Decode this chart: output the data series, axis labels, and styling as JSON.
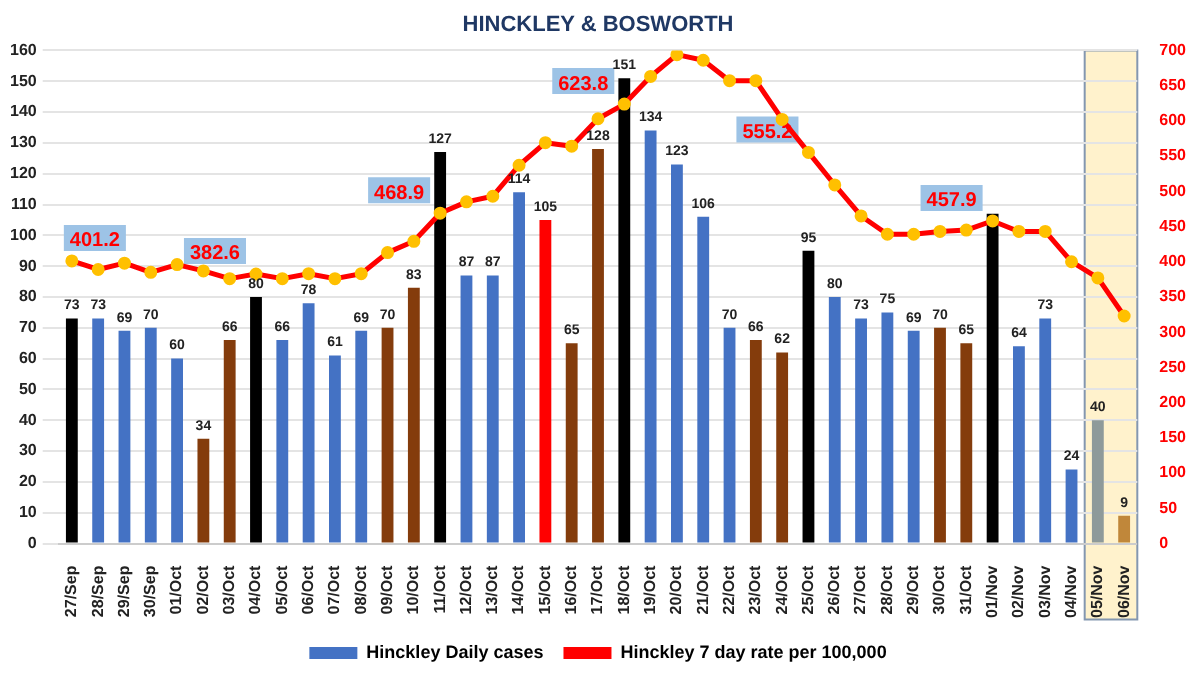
{
  "chart_data": {
    "type": "bar",
    "title": "HINCKLEY & BOSWORTH",
    "categories": [
      "27/Sep",
      "28/Sep",
      "29/Sep",
      "30/Sep",
      "01/Oct",
      "02/Oct",
      "03/Oct",
      "04/Oct",
      "05/Oct",
      "06/Oct",
      "07/Oct",
      "08/Oct",
      "09/Oct",
      "10/Oct",
      "11/Oct",
      "12/Oct",
      "13/Oct",
      "14/Oct",
      "15/Oct",
      "16/Oct",
      "17/Oct",
      "18/Oct",
      "19/Oct",
      "20/Oct",
      "21/Oct",
      "22/Oct",
      "23/Oct",
      "24/Oct",
      "25/Oct",
      "26/Oct",
      "27/Oct",
      "28/Oct",
      "29/Oct",
      "30/Oct",
      "31/Oct",
      "01/Nov",
      "02/Nov",
      "03/Nov",
      "04/Nov",
      "05/Nov",
      "06/Nov"
    ],
    "series": [
      {
        "name": "Hinckley Daily cases",
        "color": "#4472c4",
        "values": [
          73,
          73,
          69,
          70,
          60,
          34,
          66,
          80,
          66,
          78,
          61,
          69,
          70,
          83,
          127,
          87,
          87,
          114,
          105,
          65,
          128,
          151,
          134,
          123,
          106,
          70,
          66,
          62,
          95,
          80,
          73,
          75,
          69,
          70,
          65,
          107,
          64,
          73,
          24,
          40,
          9
        ],
        "value_labels": [
          "73",
          "73",
          "69",
          "70",
          "60",
          "34",
          "66",
          "80",
          "66",
          "78",
          "61",
          "69",
          "70",
          "83",
          "127",
          "87",
          "87",
          "114",
          "105",
          "65",
          "128",
          "151",
          "134",
          "123",
          "106",
          "70",
          "66",
          "62",
          "95",
          "80",
          "73",
          "75",
          "69",
          "70",
          "65",
          null,
          "64",
          "73",
          "24",
          "40",
          "9"
        ],
        "colors": [
          "#000000",
          "#4472c4",
          "#4472c4",
          "#4472c4",
          "#4472c4",
          "#843c0c",
          "#843c0c",
          "#000000",
          "#4472c4",
          "#4472c4",
          "#4472c4",
          "#4472c4",
          "#843c0c",
          "#843c0c",
          "#000000",
          "#4472c4",
          "#4472c4",
          "#4472c4",
          "#ff0000",
          "#843c0c",
          "#843c0c",
          "#000000",
          "#4472c4",
          "#4472c4",
          "#4472c4",
          "#4472c4",
          "#843c0c",
          "#843c0c",
          "#000000",
          "#4472c4",
          "#4472c4",
          "#4472c4",
          "#4472c4",
          "#843c0c",
          "#843c0c",
          "#000000",
          "#4472c4",
          "#4472c4",
          "#4472c4",
          "#8e9a9a",
          "#c0873a"
        ]
      },
      {
        "name": "Hinckley 7 day rate per 100,000",
        "type": "line",
        "axis": "y2",
        "color": "#ff0000",
        "values": [
          401.2,
          389,
          398,
          385,
          396,
          387,
          376,
          382.6,
          376,
          383,
          376,
          383,
          413,
          429,
          468.9,
          485,
          493,
          537,
          569,
          564,
          603,
          623.8,
          663,
          694,
          686,
          657,
          657,
          602,
          555.2,
          509,
          465,
          439,
          439,
          443,
          445,
          457.9,
          443,
          443,
          400,
          377,
          323
        ],
        "value_labels": [
          "401.2",
          null,
          null,
          null,
          null,
          null,
          null,
          "382.6",
          null,
          null,
          null,
          null,
          null,
          null,
          "468.9",
          null,
          null,
          null,
          null,
          null,
          null,
          "623.8",
          null,
          null,
          null,
          null,
          null,
          null,
          "555.2",
          null,
          null,
          null,
          null,
          null,
          null,
          "457.9",
          null,
          null,
          null,
          null,
          null
        ]
      }
    ],
    "ylim": [
      0,
      160
    ],
    "yticks": [
      0,
      10,
      20,
      30,
      40,
      50,
      60,
      70,
      80,
      90,
      100,
      110,
      120,
      130,
      140,
      150,
      160
    ],
    "y2lim": [
      0,
      700
    ],
    "y2ticks": [
      0,
      50,
      100,
      150,
      200,
      250,
      300,
      350,
      400,
      450,
      500,
      550,
      600,
      650,
      700
    ],
    "bands": [
      {
        "axis": "x",
        "from": "05/Nov",
        "to": "06/Nov",
        "color": "#fff2cc"
      }
    ],
    "grid": "y",
    "legend": "bottom",
    "marker": "circle",
    "line_style": "solid"
  }
}
